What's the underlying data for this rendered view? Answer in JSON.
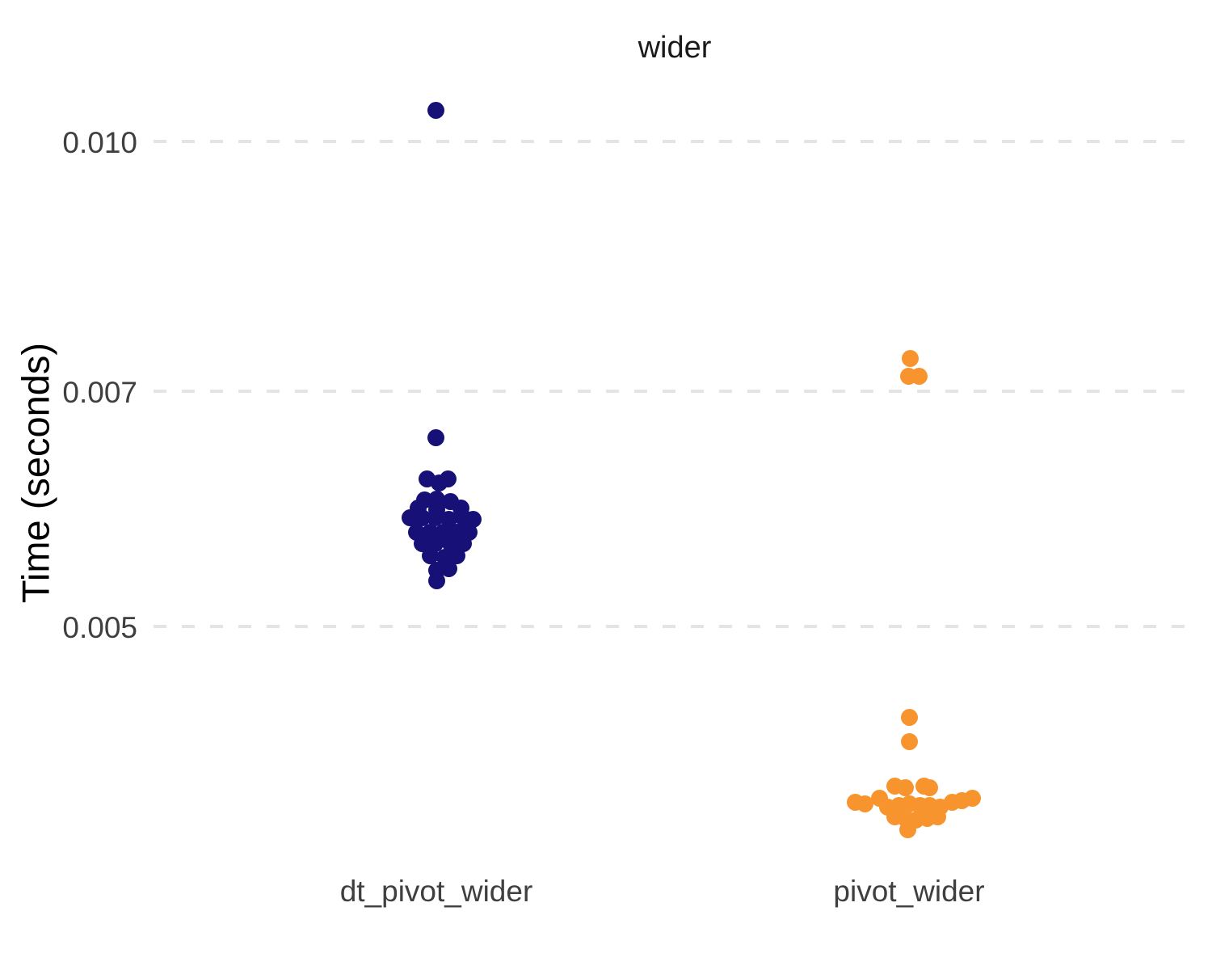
{
  "chart_data": {
    "type": "scatter",
    "subtype": "jittered-beeswarm-benchmark",
    "title": "wider",
    "xlabel": "",
    "ylabel": "Time (seconds)",
    "x_categories": [
      "dt_pivot_wider",
      "pivot_wider"
    ],
    "y_scale": "log10",
    "y_ticks": [
      0.005,
      0.007,
      0.01
    ],
    "y_tick_labels": [
      "0.005",
      "0.007",
      "0.010"
    ],
    "ylim_approx": [
      0.0034,
      0.011
    ],
    "grid": {
      "horizontal_major": true,
      "style": "dashed",
      "color": "#e4e4e4"
    },
    "legend": "none",
    "background": "#ffffff",
    "colors": {
      "dt_pivot_wider": "#171077",
      "pivot_wider": "#f7942d"
    },
    "points_format": "[x_offset_px_from_category_center, time_seconds]",
    "series": [
      {
        "name": "dt_pivot_wider",
        "color": "#171077",
        "points": [
          [
            -1,
            0.01045
          ],
          [
            -1,
            0.00655
          ],
          [
            -12,
            0.00617
          ],
          [
            3,
            0.00614
          ],
          [
            14,
            0.00617
          ],
          [
            -15,
            0.00599
          ],
          [
            0,
            0.006
          ],
          [
            17,
            0.00598
          ],
          [
            -23,
            0.00592
          ],
          [
            30,
            0.00592
          ],
          [
            0,
            0.00591
          ],
          [
            -33,
            0.00584
          ],
          [
            -18,
            0.00584
          ],
          [
            -2,
            0.00584
          ],
          [
            15,
            0.00583
          ],
          [
            33,
            0.00584
          ],
          [
            45,
            0.00583
          ],
          [
            -25,
            0.00572
          ],
          [
            -8,
            0.00572
          ],
          [
            8,
            0.00572
          ],
          [
            25,
            0.00572
          ],
          [
            40,
            0.00572
          ],
          [
            -18,
            0.00563
          ],
          [
            -2,
            0.00563
          ],
          [
            17,
            0.00563
          ],
          [
            33,
            0.00563
          ],
          [
            -8,
            0.00553
          ],
          [
            10,
            0.00552
          ],
          [
            25,
            0.00553
          ],
          [
            0,
            0.00542
          ],
          [
            15,
            0.00543
          ],
          [
            0,
            0.00534
          ]
        ]
      },
      {
        "name": "pivot_wider",
        "color": "#f7942d",
        "points": [
          [
            1,
            0.00733
          ],
          [
            -1,
            0.00715
          ],
          [
            12,
            0.00715
          ],
          [
            0,
            0.00439
          ],
          [
            0,
            0.00424
          ],
          [
            -67,
            0.00389
          ],
          [
            -55,
            0.00388
          ],
          [
            -37,
            0.00391
          ],
          [
            -18,
            0.00398
          ],
          [
            -5,
            0.00397
          ],
          [
            18,
            0.00398
          ],
          [
            25,
            0.00397
          ],
          [
            -27,
            0.00386
          ],
          [
            -13,
            0.00387
          ],
          [
            0,
            0.00388
          ],
          [
            13,
            0.00387
          ],
          [
            25,
            0.00387
          ],
          [
            38,
            0.00386
          ],
          [
            -18,
            0.00381
          ],
          [
            -5,
            0.0038
          ],
          [
            8,
            0.00379
          ],
          [
            22,
            0.0038
          ],
          [
            35,
            0.00381
          ],
          [
            -2,
            0.00374
          ],
          [
            53,
            0.00389
          ],
          [
            65,
            0.0039
          ],
          [
            78,
            0.00391
          ]
        ]
      }
    ]
  }
}
